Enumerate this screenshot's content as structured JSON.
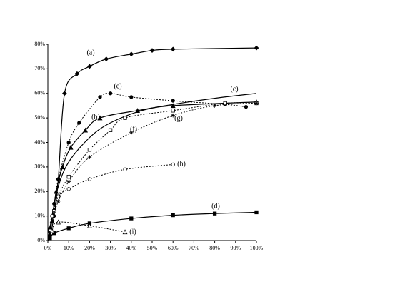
{
  "chart_data": {
    "type": "line",
    "xlim": [
      0,
      100
    ],
    "ylim": [
      0,
      80
    ],
    "xticks": [
      {
        "value": 0,
        "label": "0%"
      },
      {
        "value": 10,
        "label": "10%"
      },
      {
        "value": 20,
        "label": "20%"
      },
      {
        "value": 30,
        "label": "30%"
      },
      {
        "value": 40,
        "label": "40%"
      },
      {
        "value": 50,
        "label": "50%"
      },
      {
        "value": 60,
        "label": "60%"
      },
      {
        "value": 70,
        "label": "70%"
      },
      {
        "value": 80,
        "label": "80%"
      },
      {
        "value": 90,
        "label": "90%"
      },
      {
        "value": 100,
        "label": "100%"
      }
    ],
    "yticks": [
      {
        "value": 0,
        "label": "0%"
      },
      {
        "value": 10,
        "label": "10%"
      },
      {
        "value": 20,
        "label": "20%"
      },
      {
        "value": 30,
        "label": "30%"
      },
      {
        "value": 40,
        "label": "40%"
      },
      {
        "value": 50,
        "label": "50%"
      },
      {
        "value": 60,
        "label": "60%"
      },
      {
        "value": 70,
        "label": "70%"
      },
      {
        "value": 80,
        "label": "80%"
      }
    ],
    "series": [
      {
        "name": "(a)",
        "color": "#000000",
        "dash": "solid",
        "marker": "diamond",
        "x": [
          0,
          1,
          3,
          5,
          8,
          14,
          20,
          28,
          40,
          50,
          60,
          100
        ],
        "values": [
          0,
          2,
          10,
          25,
          60,
          68,
          71,
          74,
          76,
          77.5,
          78,
          78.5
        ]
      },
      {
        "name": "(b)",
        "color": "#000000",
        "dash": "solid",
        "marker": "triangle",
        "x": [
          0,
          2,
          4,
          7,
          11,
          18,
          25,
          43,
          60,
          100
        ],
        "values": [
          0,
          8,
          20,
          30,
          38,
          45,
          50,
          53,
          55,
          56.5
        ]
      },
      {
        "name": "(c)",
        "color": "#000000",
        "dash": "solid",
        "marker": "none",
        "x": [
          0,
          2,
          5,
          10,
          20,
          30,
          45,
          60,
          80,
          100
        ],
        "values": [
          0,
          10,
          22,
          32,
          42,
          48,
          53,
          55.5,
          58,
          60
        ]
      },
      {
        "name": "(d)",
        "color": "#000000",
        "dash": "solid",
        "marker": "square",
        "x": [
          0,
          1,
          3,
          10,
          20,
          40,
          60,
          80,
          100
        ],
        "values": [
          0,
          1,
          3,
          5,
          7,
          9,
          10.3,
          11,
          11.5
        ]
      },
      {
        "name": "(e)",
        "color": "#000000",
        "dash": "dotted",
        "marker": "circle",
        "x": [
          0,
          1,
          3,
          5,
          10,
          15,
          25,
          30,
          40,
          60,
          85,
          95
        ],
        "values": [
          0,
          5,
          15,
          25,
          40,
          48,
          58.5,
          60,
          58.5,
          57,
          55.5,
          54.5
        ]
      },
      {
        "name": "(f)",
        "color": "#000000",
        "dash": "dotted",
        "marker": "open-square",
        "x": [
          0,
          1,
          3,
          5,
          10,
          20,
          30,
          37,
          60,
          85,
          100
        ],
        "values": [
          0,
          4,
          12,
          18,
          26,
          37,
          45,
          50,
          53,
          56,
          56
        ]
      },
      {
        "name": "(g)",
        "color": "#000000",
        "dash": "dotted",
        "marker": "star",
        "x": [
          0,
          2,
          5,
          10,
          20,
          40,
          60,
          80,
          100
        ],
        "values": [
          0,
          8,
          16,
          24,
          34,
          44,
          51,
          55,
          56
        ]
      },
      {
        "name": "(h)",
        "color": "#000000",
        "dash": "dotted",
        "marker": "open-circle",
        "x": [
          0,
          2,
          5,
          10,
          20,
          37,
          60
        ],
        "values": [
          0,
          10,
          18,
          21,
          25,
          29,
          31
        ]
      },
      {
        "name": "(i)",
        "color": "#000000",
        "dash": "dotted",
        "marker": "open-triangle",
        "x": [
          0,
          2,
          5,
          20,
          37
        ],
        "values": [
          0,
          4,
          7.5,
          6,
          3.5
        ]
      }
    ]
  }
}
